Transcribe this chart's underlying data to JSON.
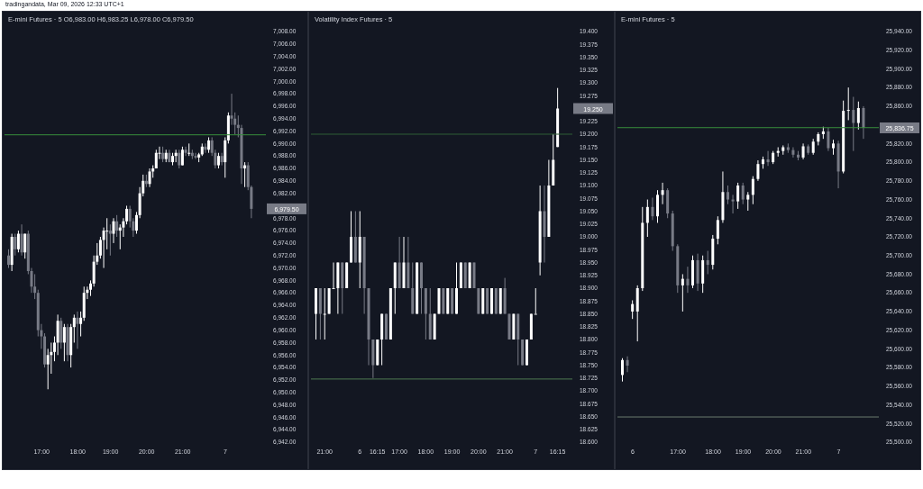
{
  "chart_data": [
    {
      "type": "candlestick",
      "title": "E-mini Futures · 5  O6,983.00 H6,983.25 L6,978.00 C6,979.50",
      "colors": [
        "#787b86",
        "#ffffff",
        "#787b86",
        "#ffffff",
        "#787b86",
        "#ffffff",
        "#787b86",
        "#787b86",
        "#787b86",
        "#787b86",
        "#787b86",
        "#787b86",
        "#ffffff",
        "#ffffff",
        "#ffffff",
        "#ffffff",
        "#787b86",
        "#ffffff",
        "#787b86",
        "#ffffff",
        "#ffffff",
        "#787b86",
        "#ffffff",
        "#ffffff",
        "#ffffff",
        "#ffffff",
        "#ffffff",
        "#ffffff",
        "#ffffff",
        "#ffffff",
        "#ffffff",
        "#787b86",
        "#ffffff",
        "#787b86",
        "#ffffff",
        "#ffffff",
        "#ffffff",
        "#787b86",
        "#787b86",
        "#ffffff",
        "#ffffff",
        "#ffffff",
        "#787b86",
        "#ffffff",
        "#ffffff",
        "#ffffff",
        "#ffffff",
        "#787b86",
        "#ffffff",
        "#787b86",
        "#ffffff",
        "#ffffff",
        "#787b86",
        "#ffffff",
        "#787b86",
        "#ffffff",
        "#787b86",
        "#787b86",
        "#ffffff",
        "#ffffff",
        "#787b86",
        "#ffffff",
        "#787b86",
        "#787b86",
        "#ffffff",
        "#787b86",
        "#ffffff",
        "#ffffff",
        "#787b86",
        "#787b86",
        "#787b86",
        "#787b86",
        "#ffffff",
        "#787b86",
        "#787b86"
      ],
      "annotations": [
        "tradingandata, Mar 09, 2026 12:33 UTC+1",
        "6,979.50"
      ],
      "categories": [
        null,
        null,
        null,
        null,
        null,
        null,
        null,
        null,
        null,
        null,
        "17:00",
        null,
        null,
        null,
        null,
        null,
        null,
        null,
        null,
        null,
        null,
        "18:00",
        null,
        null,
        null,
        null,
        null,
        null,
        null,
        null,
        null,
        "19:00",
        null,
        null,
        null,
        null,
        null,
        null,
        null,
        null,
        null,
        null,
        "20:00",
        null,
        null,
        null,
        null,
        null,
        null,
        null,
        null,
        null,
        null,
        "21:00",
        null,
        null,
        null,
        null,
        null,
        null,
        null,
        null,
        null,
        null,
        null,
        null,
        "7",
        null,
        null,
        null,
        null,
        null,
        null,
        null,
        null
      ],
      "ohlc": [
        [
          6972,
          6973,
          6970,
          6970.5
        ],
        [
          6970.5,
          6975.5,
          6969.5,
          6975
        ],
        [
          6975,
          6975.5,
          6972,
          6973
        ],
        [
          6973,
          6976,
          6972.5,
          6975.5
        ],
        [
          6975.5,
          6977,
          6972,
          6972.5
        ],
        [
          6972.5,
          6975.5,
          6971.5,
          6975.5
        ],
        [
          6975.5,
          6976,
          6969,
          6969.5
        ],
        [
          6969.5,
          6970,
          6966,
          6967
        ],
        [
          6967,
          6969,
          6965,
          6966
        ],
        [
          6966,
          6966.5,
          6959,
          6960
        ],
        [
          6960,
          6961,
          6957,
          6959
        ],
        [
          6959,
          6959.5,
          6954,
          6954.5
        ],
        [
          6954.5,
          6957,
          6950.5,
          6956
        ],
        [
          6956,
          6958,
          6953,
          6956.5
        ],
        [
          6956.5,
          6959,
          6955,
          6958
        ],
        [
          6958,
          6962.5,
          6956,
          6961.5
        ],
        [
          6961.5,
          6962,
          6957,
          6958
        ],
        [
          6958,
          6961,
          6955,
          6960.5
        ],
        [
          6960.5,
          6961,
          6955,
          6956
        ],
        [
          6956,
          6961,
          6954,
          6960.5
        ],
        [
          6960.5,
          6962.5,
          6958,
          6962
        ],
        [
          6962,
          6963,
          6957,
          6961
        ],
        [
          6961,
          6963,
          6959,
          6962
        ],
        [
          6962,
          6967,
          6961.5,
          6966
        ],
        [
          6966,
          6967,
          6965,
          6966.5
        ],
        [
          6966.5,
          6968,
          6965.5,
          6967.5
        ],
        [
          6967.5,
          6972,
          6967,
          6971
        ],
        [
          6971,
          6974,
          6970.5,
          6972
        ],
        [
          6972,
          6975,
          6971.5,
          6974.5
        ],
        [
          6974.5,
          6976.5,
          6970,
          6976
        ],
        [
          6976,
          6978,
          6973,
          6976
        ],
        [
          6976,
          6977,
          6972,
          6975.5
        ],
        [
          6975.5,
          6978,
          6974,
          6977.5
        ],
        [
          6977.5,
          6978.5,
          6975,
          6976
        ],
        [
          6976,
          6977,
          6973,
          6976.5
        ],
        [
          6976.5,
          6978,
          6975,
          6977.5
        ],
        [
          6977.5,
          6980,
          6977,
          6979.5
        ],
        [
          6979.5,
          6980,
          6976.5,
          6977.5
        ],
        [
          6977.5,
          6978,
          6975,
          6976
        ],
        [
          6976,
          6979,
          6975.5,
          6978.5
        ],
        [
          6978.5,
          6983,
          6978,
          6982
        ],
        [
          6982,
          6985,
          6981.5,
          6984
        ],
        [
          6984,
          6985,
          6983,
          6983.5
        ],
        [
          6983.5,
          6986,
          6983,
          6985.5
        ],
        [
          6985.5,
          6986.5,
          6984.5,
          6986
        ],
        [
          6986,
          6989,
          6986,
          6988.5
        ],
        [
          6988.5,
          6989.5,
          6987.5,
          6988.5
        ],
        [
          6988.5,
          6989.5,
          6987,
          6987.5
        ],
        [
          6987.5,
          6989,
          6987,
          6988.5
        ],
        [
          6988.5,
          6989,
          6987,
          6987
        ],
        [
          6987,
          6988.5,
          6986.5,
          6988
        ],
        [
          6988,
          6989,
          6987,
          6988.5
        ],
        [
          6988.5,
          6989,
          6986,
          6986.5
        ],
        [
          6986.5,
          6989.5,
          6986.5,
          6989
        ],
        [
          6989,
          6989.5,
          6988,
          6988.5
        ],
        [
          6988.5,
          6990,
          6988,
          6988.5
        ],
        [
          6988.5,
          6989,
          6987.5,
          6988
        ],
        [
          6988,
          6988.5,
          6987.5,
          6987.75
        ],
        [
          6987.75,
          6988.5,
          6987,
          6988.25
        ],
        [
          6988.25,
          6990,
          6988,
          6989.5
        ],
        [
          6989.5,
          6990,
          6988.5,
          6989
        ],
        [
          6989,
          6991,
          6988.5,
          6990.5
        ],
        [
          6990.5,
          6991,
          6988,
          6988.5
        ],
        [
          6988.5,
          6989,
          6986,
          6986.5
        ],
        [
          6986.5,
          6988.5,
          6986,
          6988
        ],
        [
          6988,
          6988.5,
          6986.5,
          6987
        ],
        [
          6987,
          6991,
          6984.5,
          6990.5
        ],
        [
          6990.5,
          6995,
          6990,
          6994.5
        ],
        [
          6994.5,
          6998,
          6993,
          6994
        ],
        [
          6994,
          6995,
          6991.5,
          6993
        ],
        [
          6993,
          6994.5,
          6991,
          6992.5
        ],
        [
          6992.5,
          6993,
          6983.5,
          6986
        ],
        [
          6986,
          6987,
          6983,
          6986.5
        ],
        [
          6986.5,
          6987,
          6982.5,
          6983
        ],
        [
          6983,
          6983.25,
          6978,
          6979.5
        ]
      ],
      "ylim": [
        6942,
        7008
      ],
      "yticks": [
        {
          "value": 6942,
          "label": "6,942.00"
        },
        {
          "value": 6944,
          "label": "6,944.00"
        },
        {
          "value": 6946,
          "label": "6,946.00"
        },
        {
          "value": 6948,
          "label": "6,948.00"
        },
        {
          "value": 6950,
          "label": "6,950.00"
        },
        {
          "value": 6952,
          "label": "6,952.00"
        },
        {
          "value": 6954,
          "label": "6,954.00"
        },
        {
          "value": 6956,
          "label": "6,956.00"
        },
        {
          "value": 6958,
          "label": "6,958.00"
        },
        {
          "value": 6960,
          "label": "6,960.00"
        },
        {
          "value": 6962,
          "label": "6,962.00"
        },
        {
          "value": 6964,
          "label": "6,964.00"
        },
        {
          "value": 6966,
          "label": "6,966.00"
        },
        {
          "value": 6968,
          "label": "6,968.00"
        },
        {
          "value": 6970,
          "label": "6,970.00"
        },
        {
          "value": 6972,
          "label": "6,972.00"
        },
        {
          "value": 6974,
          "label": "6,974.00"
        },
        {
          "value": 6976,
          "label": "6,976.00"
        },
        {
          "value": 6978,
          "label": "6,978.00"
        },
        {
          "value": 6982,
          "label": "6,982.00"
        },
        {
          "value": 6984,
          "label": "6,984.00"
        },
        {
          "value": 6986,
          "label": "6,986.00"
        },
        {
          "value": 6988,
          "label": "6,988.00"
        },
        {
          "value": 6990,
          "label": "6,990.00"
        },
        {
          "value": 6992,
          "label": "6,992.00"
        },
        {
          "value": 6994,
          "label": "6,994.00"
        },
        {
          "value": 6996,
          "label": "6,996.00"
        },
        {
          "value": 6998,
          "label": "6,998.00"
        },
        {
          "value": 7000,
          "label": "7,000.00"
        },
        {
          "value": 7002,
          "label": "7,002.00"
        },
        {
          "value": 7004,
          "label": "7,004.00"
        },
        {
          "value": 7006,
          "label": "7,006.00"
        },
        {
          "value": 7008,
          "label": "7,008.00"
        }
      ],
      "ref_lines": [
        {
          "axis": "y",
          "value": 6991.4,
          "color": "#388e3c"
        }
      ]
    },
    {
      "type": "candlestick",
      "title": "Volatility Index Futures · 5",
      "colors": [
        "#ffffff",
        "#787b86",
        "#ffffff",
        "#ffffff",
        "#ffffff",
        "#ffffff",
        "#787b86",
        "#ffffff",
        "#ffffff",
        "#787b86",
        "#ffffff",
        "#787b86",
        "#787b86",
        "#787b86",
        "#ffffff",
        "#ffffff",
        "#787b86",
        "#ffffff",
        "#ffffff",
        "#787b86",
        "#ffffff",
        "#787b86",
        "#787b86",
        "#ffffff",
        "#787b86",
        "#787b86",
        "#787b86",
        "#ffffff",
        "#ffffff",
        "#787b86",
        "#ffffff",
        "#787b86",
        "#ffffff",
        "#ffffff",
        "#787b86",
        "#ffffff",
        "#787b86",
        "#787b86",
        "#ffffff",
        "#787b86",
        "#ffffff",
        "#787b86",
        "#ffffff",
        "#787b86",
        "#787b86",
        "#ffffff",
        "#787b86",
        "#787b86",
        "#ffffff",
        "#ffffff",
        "#ffffff",
        "#ffffff",
        "#787b86",
        "#ffffff",
        "#ffffff",
        "#ffffff"
      ],
      "annotations": [
        "19.250"
      ],
      "categories": [
        null,
        null,
        "21:00",
        null,
        null,
        null,
        null,
        null,
        null,
        null,
        "6",
        null,
        null,
        null,
        "16:15",
        null,
        null,
        null,
        null,
        "17:00",
        null,
        null,
        null,
        null,
        null,
        "18:00",
        null,
        null,
        null,
        null,
        null,
        "19:00",
        null,
        null,
        null,
        null,
        null,
        "20:00",
        null,
        null,
        null,
        null,
        null,
        "21:00",
        null,
        null,
        null,
        null,
        null,
        null,
        "7",
        null,
        null,
        null,
        null,
        "16:15"
      ],
      "ohlc": [
        [
          18.85,
          18.9,
          18.8,
          18.9
        ],
        [
          18.9,
          18.9,
          18.8,
          18.85
        ],
        [
          18.85,
          18.9,
          18.8,
          18.85
        ],
        [
          18.85,
          18.9,
          18.85,
          18.9
        ],
        [
          18.9,
          18.95,
          18.9,
          18.9
        ],
        [
          18.9,
          18.95,
          18.85,
          18.95
        ],
        [
          18.95,
          18.95,
          18.85,
          18.9
        ],
        [
          18.9,
          18.95,
          18.9,
          18.95
        ],
        [
          18.95,
          19.05,
          18.95,
          19.0
        ],
        [
          19.0,
          19.05,
          18.95,
          18.95
        ],
        [
          18.95,
          19.05,
          18.9,
          19.0
        ],
        [
          19.0,
          19.0,
          18.85,
          18.9
        ],
        [
          18.9,
          18.9,
          18.75,
          18.8
        ],
        [
          18.8,
          18.8,
          18.725,
          18.75
        ],
        [
          18.75,
          18.8,
          18.75,
          18.8
        ],
        [
          18.8,
          18.85,
          18.75,
          18.85
        ],
        [
          18.85,
          18.85,
          18.8,
          18.8
        ],
        [
          18.8,
          18.9,
          18.8,
          18.9
        ],
        [
          18.9,
          18.95,
          18.85,
          18.95
        ],
        [
          18.95,
          19.0,
          18.9,
          18.9
        ],
        [
          18.9,
          19.0,
          18.9,
          18.95
        ],
        [
          18.95,
          19.0,
          18.9,
          18.9
        ],
        [
          18.9,
          18.95,
          18.85,
          18.85
        ],
        [
          18.85,
          18.95,
          18.85,
          18.95
        ],
        [
          18.95,
          18.95,
          18.85,
          18.9
        ],
        [
          18.9,
          18.9,
          18.8,
          18.85
        ],
        [
          18.85,
          18.9,
          18.8,
          18.8
        ],
        [
          18.8,
          18.85,
          18.8,
          18.85
        ],
        [
          18.85,
          18.9,
          18.85,
          18.9
        ],
        [
          18.9,
          18.9,
          18.85,
          18.85
        ],
        [
          18.85,
          18.9,
          18.85,
          18.9
        ],
        [
          18.9,
          18.9,
          18.85,
          18.85
        ],
        [
          18.85,
          18.95,
          18.85,
          18.9
        ],
        [
          18.9,
          18.95,
          18.9,
          18.95
        ],
        [
          18.95,
          18.95,
          18.9,
          18.9
        ],
        [
          18.9,
          18.95,
          18.9,
          18.95
        ],
        [
          18.95,
          18.95,
          18.9,
          18.9
        ],
        [
          18.9,
          18.9,
          18.85,
          18.85
        ],
        [
          18.85,
          18.9,
          18.85,
          18.9
        ],
        [
          18.9,
          18.9,
          18.85,
          18.85
        ],
        [
          18.85,
          18.9,
          18.85,
          18.9
        ],
        [
          18.9,
          18.9,
          18.85,
          18.85
        ],
        [
          18.85,
          18.9,
          18.85,
          18.9
        ],
        [
          18.9,
          18.92,
          18.85,
          18.85
        ],
        [
          18.85,
          18.85,
          18.8,
          18.8
        ],
        [
          18.8,
          18.85,
          18.8,
          18.85
        ],
        [
          18.85,
          18.85,
          18.75,
          18.8
        ],
        [
          18.8,
          18.8,
          18.75,
          18.75
        ],
        [
          18.75,
          18.8,
          18.75,
          18.8
        ],
        [
          18.8,
          18.85,
          18.8,
          18.85
        ],
        [
          18.85,
          18.9,
          18.85,
          18.85
        ],
        [
          18.95,
          19.1,
          18.925,
          19.05
        ],
        [
          19.05,
          19.1,
          18.95,
          19.0
        ],
        [
          19.0,
          19.15,
          19.0,
          19.1
        ],
        [
          19.1,
          19.2,
          19.1,
          19.15
        ],
        [
          19.175,
          19.29,
          19.175,
          19.25
        ]
      ],
      "ylim": [
        18.6,
        19.4
      ],
      "yticks": [
        {
          "value": 18.6,
          "label": "18.600"
        },
        {
          "value": 18.625,
          "label": "18.625"
        },
        {
          "value": 18.65,
          "label": "18.650"
        },
        {
          "value": 18.675,
          "label": "18.675"
        },
        {
          "value": 18.7,
          "label": "18.700"
        },
        {
          "value": 18.725,
          "label": "18.725"
        },
        {
          "value": 18.75,
          "label": "18.750"
        },
        {
          "value": 18.775,
          "label": "18.775"
        },
        {
          "value": 18.8,
          "label": "18.800"
        },
        {
          "value": 18.825,
          "label": "18.825"
        },
        {
          "value": 18.85,
          "label": "18.850"
        },
        {
          "value": 18.875,
          "label": "18.875"
        },
        {
          "value": 18.9,
          "label": "18.900"
        },
        {
          "value": 18.925,
          "label": "18.925"
        },
        {
          "value": 18.95,
          "label": "18.950"
        },
        {
          "value": 18.975,
          "label": "18.975"
        },
        {
          "value": 19.0,
          "label": "19.000"
        },
        {
          "value": 19.025,
          "label": "19.025"
        },
        {
          "value": 19.05,
          "label": "19.050"
        },
        {
          "value": 19.075,
          "label": "19.075"
        },
        {
          "value": 19.1,
          "label": "19.100"
        },
        {
          "value": 19.125,
          "label": "19.125"
        },
        {
          "value": 19.15,
          "label": "19.150"
        },
        {
          "value": 19.175,
          "label": "19.175"
        },
        {
          "value": 19.2,
          "label": "19.200"
        },
        {
          "value": 19.225,
          "label": "19.225"
        },
        {
          "value": 19.275,
          "label": "19.275"
        },
        {
          "value": 19.3,
          "label": "19.300"
        },
        {
          "value": 19.325,
          "label": "19.325"
        },
        {
          "value": 19.35,
          "label": "19.350"
        },
        {
          "value": 19.375,
          "label": "19.375"
        },
        {
          "value": 19.4,
          "label": "19.400"
        }
      ],
      "ref_lines": [
        {
          "axis": "y",
          "value": 19.2,
          "color": "#2e5e34"
        },
        {
          "axis": "y",
          "value": 18.723,
          "color": "#4f7a52"
        }
      ]
    },
    {
      "type": "candlestick",
      "title": "E-mini Futures · 5",
      "colors": [
        "#ffffff",
        "#787b86",
        "#ffffff",
        "#ffffff",
        "#ffffff",
        "#ffffff",
        "#787b86",
        "#ffffff",
        "#ffffff",
        "#787b86",
        "#787b86",
        "#787b86",
        "#ffffff",
        "#787b86",
        "#ffffff",
        "#787b86",
        "#ffffff",
        "#787b86",
        "#ffffff",
        "#ffffff",
        "#ffffff",
        "#787b86",
        "#787b86",
        "#ffffff",
        "#787b86",
        "#ffffff",
        "#ffffff",
        "#ffffff",
        "#ffffff",
        "#787b86",
        "#ffffff",
        "#ffffff",
        "#ffffff",
        "#787b86",
        "#787b86",
        "#787b86",
        "#ffffff",
        "#787b86",
        "#ffffff",
        "#ffffff",
        "#ffffff",
        "#787b86",
        "#ffffff",
        "#787b86",
        "#ffffff",
        "#ffffff",
        "#787b86",
        "#ffffff",
        "#787b86"
      ],
      "annotations": [
        "25,836.75"
      ],
      "categories": [
        null,
        null,
        "6",
        null,
        null,
        null,
        null,
        null,
        null,
        null,
        null,
        "17:00",
        null,
        null,
        null,
        null,
        null,
        null,
        "18:00",
        null,
        null,
        null,
        null,
        null,
        "19:00",
        null,
        null,
        null,
        null,
        null,
        "20:00",
        null,
        null,
        null,
        null,
        null,
        "21:00",
        null,
        null,
        null,
        null,
        null,
        null,
        "7",
        null,
        null,
        null,
        null,
        null
      ],
      "ohlc": [
        [
          25572,
          25590,
          25565,
          25588
        ],
        [
          25588,
          25592,
          25575,
          25582
        ],
        [
          25640,
          25652,
          25632,
          25648
        ],
        [
          25640,
          25668,
          25608,
          25665
        ],
        [
          25665,
          25752,
          25662,
          25735
        ],
        [
          25735,
          25760,
          25720,
          25752
        ],
        [
          25752,
          25762,
          25738,
          25742
        ],
        [
          25742,
          25770,
          25735,
          25765
        ],
        [
          25765,
          25778,
          25755,
          25770
        ],
        [
          25770,
          25772,
          25740,
          25745
        ],
        [
          25745,
          25748,
          25705,
          25710
        ],
        [
          25710,
          25712,
          25660,
          25668
        ],
        [
          25668,
          25680,
          25640,
          25675
        ],
        [
          25675,
          25688,
          25660,
          25668
        ],
        [
          25668,
          25700,
          25665,
          25695
        ],
        [
          25695,
          25702,
          25662,
          25670
        ],
        [
          25670,
          25700,
          25660,
          25695
        ],
        [
          25695,
          25705,
          25680,
          25690
        ],
        [
          25690,
          25722,
          25685,
          25718
        ],
        [
          25718,
          25742,
          25712,
          25738
        ],
        [
          25738,
          25790,
          25735,
          25768
        ],
        [
          25768,
          25775,
          25755,
          25760
        ],
        [
          25760,
          25765,
          25745,
          25758
        ],
        [
          25758,
          25778,
          25750,
          25775
        ],
        [
          25775,
          25778,
          25755,
          25760
        ],
        [
          25760,
          25768,
          25748,
          25765
        ],
        [
          25765,
          25785,
          25755,
          25782
        ],
        [
          25782,
          25802,
          25780,
          25798
        ],
        [
          25798,
          25806,
          25793,
          25803
        ],
        [
          25803,
          25812,
          25796,
          25800
        ],
        [
          25800,
          25812,
          25798,
          25810
        ],
        [
          25810,
          25816,
          25806,
          25812
        ],
        [
          25812,
          25818,
          25808,
          25816
        ],
        [
          25816,
          25820,
          25810,
          25813
        ],
        [
          25813,
          25816,
          25805,
          25808
        ],
        [
          25808,
          25812,
          25802,
          25805
        ],
        [
          25805,
          25820,
          25803,
          25817
        ],
        [
          25817,
          25819,
          25808,
          25810
        ],
        [
          25810,
          25825,
          25808,
          25822
        ],
        [
          25822,
          25832,
          25818,
          25830
        ],
        [
          25830,
          25838,
          25825,
          25833
        ],
        [
          25833,
          25837,
          25812,
          25815
        ],
        [
          25815,
          25824,
          25808,
          25820
        ],
        [
          25820,
          25823,
          25772,
          25790
        ],
        [
          25790,
          25866,
          25788,
          25855
        ],
        [
          25855,
          25880,
          25845,
          25856
        ],
        [
          25856,
          25870,
          25812,
          25842
        ],
        [
          25842,
          25865,
          25835,
          25858
        ],
        [
          25858,
          25860,
          25825,
          25836.75
        ]
      ],
      "ylim": [
        25500,
        25940
      ],
      "yticks": [
        {
          "value": 25500,
          "label": "25,500.00"
        },
        {
          "value": 25520,
          "label": "25,520.00"
        },
        {
          "value": 25540,
          "label": "25,540.00"
        },
        {
          "value": 25560,
          "label": "25,560.00"
        },
        {
          "value": 25580,
          "label": "25,580.00"
        },
        {
          "value": 25600,
          "label": "25,600.00"
        },
        {
          "value": 25620,
          "label": "25,620.00"
        },
        {
          "value": 25640,
          "label": "25,640.00"
        },
        {
          "value": 25660,
          "label": "25,660.00"
        },
        {
          "value": 25680,
          "label": "25,680.00"
        },
        {
          "value": 25700,
          "label": "25,700.00"
        },
        {
          "value": 25720,
          "label": "25,720.00"
        },
        {
          "value": 25740,
          "label": "25,740.00"
        },
        {
          "value": 25760,
          "label": "25,760.00"
        },
        {
          "value": 25780,
          "label": "25,780.00"
        },
        {
          "value": 25800,
          "label": "25,800.00"
        },
        {
          "value": 25820,
          "label": "25,820.00"
        },
        {
          "value": 25860,
          "label": "25,860.00"
        },
        {
          "value": 25880,
          "label": "25,880.00"
        },
        {
          "value": 25900,
          "label": "25,900.00"
        },
        {
          "value": 25920,
          "label": "25,920.00"
        },
        {
          "value": 25940,
          "label": "25,940.00"
        }
      ],
      "ref_lines": [
        {
          "axis": "y",
          "value": 25837,
          "color": "#388e3c"
        },
        {
          "axis": "y",
          "value": 25527,
          "color": "#6b7a6e"
        }
      ]
    }
  ]
}
